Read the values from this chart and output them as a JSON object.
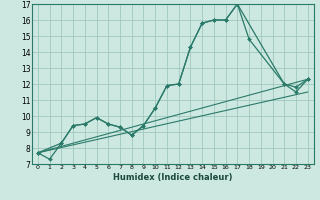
{
  "xlabel": "Humidex (Indice chaleur)",
  "background_color": "#cde8e0",
  "grid_color": "#a0c8be",
  "line_color": "#2a7a6a",
  "xlim": [
    -0.5,
    23.5
  ],
  "ylim": [
    7,
    17
  ],
  "xticks": [
    0,
    1,
    2,
    3,
    4,
    5,
    6,
    7,
    8,
    9,
    10,
    11,
    12,
    13,
    14,
    15,
    16,
    17,
    18,
    19,
    20,
    21,
    22,
    23
  ],
  "yticks": [
    7,
    8,
    9,
    10,
    11,
    12,
    13,
    14,
    15,
    16,
    17
  ],
  "curve1_x": [
    0,
    1,
    2,
    3,
    4,
    5,
    6,
    7,
    8,
    9,
    10,
    11,
    12,
    13,
    14,
    15,
    16,
    17,
    21,
    22,
    23
  ],
  "curve1_y": [
    7.7,
    7.3,
    8.3,
    9.4,
    9.5,
    9.9,
    9.5,
    9.3,
    8.8,
    9.4,
    10.5,
    11.9,
    12.0,
    14.3,
    15.8,
    16.0,
    16.0,
    17.0,
    12.0,
    11.8,
    12.3
  ],
  "curve2_x": [
    0,
    2,
    3,
    4,
    5,
    6,
    7,
    8,
    9,
    10,
    11,
    12,
    13,
    14,
    15,
    16,
    17,
    18,
    21,
    22,
    23
  ],
  "curve2_y": [
    7.7,
    8.3,
    9.4,
    9.5,
    9.9,
    9.5,
    9.3,
    8.8,
    9.4,
    10.5,
    11.9,
    12.0,
    14.3,
    15.8,
    16.0,
    16.0,
    17.0,
    14.8,
    12.0,
    11.5,
    12.3
  ],
  "trend1_x": [
    0,
    23
  ],
  "trend1_y": [
    7.7,
    12.3
  ],
  "trend2_x": [
    0,
    23
  ],
  "trend2_y": [
    7.7,
    11.5
  ]
}
